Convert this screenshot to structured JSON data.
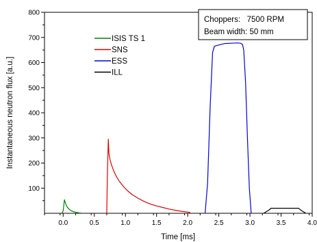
{
  "chart_data": {
    "type": "line",
    "xlabel": "Time [ms]",
    "ylabel": "Instantaneous neutron flux [a.u.]",
    "xlim": [
      -0.3,
      4.0
    ],
    "ylim": [
      0,
      800
    ],
    "x_ticks": [
      0.0,
      0.5,
      1.0,
      1.5,
      2.0,
      2.5,
      3.0,
      3.5,
      4.0
    ],
    "x_tick_labels": [
      "0.0",
      "0.5",
      "1.0",
      "1.5",
      "2.0",
      "2.5",
      "3.0",
      "3.5",
      "4.0"
    ],
    "y_ticks": [
      100,
      200,
      300,
      400,
      500,
      600,
      700,
      800
    ],
    "y_tick_labels": [
      "100",
      "200",
      "300",
      "400",
      "500",
      "600",
      "700",
      "800"
    ],
    "grid": false,
    "legend_position": "upper-left-center",
    "annotation_lines": [
      "Choppers:   7500 RPM",
      "Beam width: 50 mm"
    ],
    "series": [
      {
        "name": "ISIS  TS 1",
        "color": "#008000",
        "points": [
          [
            -0.02,
            0
          ],
          [
            0.0,
            10
          ],
          [
            0.02,
            54
          ],
          [
            0.04,
            38
          ],
          [
            0.06,
            27
          ],
          [
            0.08,
            20
          ],
          [
            0.1,
            15
          ],
          [
            0.13,
            10
          ],
          [
            0.16,
            7
          ],
          [
            0.2,
            4
          ],
          [
            0.25,
            2
          ],
          [
            0.3,
            0
          ]
        ]
      },
      {
        "name": "SNS",
        "color": "#e00000",
        "points": [
          [
            0.7,
            0
          ],
          [
            0.71,
            150
          ],
          [
            0.725,
            295
          ],
          [
            0.735,
            240
          ],
          [
            0.75,
            215
          ],
          [
            0.78,
            190
          ],
          [
            0.81,
            170
          ],
          [
            0.85,
            148
          ],
          [
            0.9,
            128
          ],
          [
            0.95,
            112
          ],
          [
            1.0,
            98
          ],
          [
            1.05,
            86
          ],
          [
            1.1,
            76
          ],
          [
            1.2,
            60
          ],
          [
            1.3,
            47
          ],
          [
            1.4,
            37
          ],
          [
            1.5,
            29
          ],
          [
            1.6,
            23
          ],
          [
            1.7,
            17
          ],
          [
            1.8,
            12
          ],
          [
            1.9,
            8
          ],
          [
            2.0,
            5
          ],
          [
            2.04,
            3
          ]
        ]
      },
      {
        "name": "ESS",
        "color": "#0000e0",
        "points": [
          [
            2.28,
            0
          ],
          [
            2.32,
            120
          ],
          [
            2.36,
            420
          ],
          [
            2.4,
            640
          ],
          [
            2.43,
            665
          ],
          [
            2.5,
            670
          ],
          [
            2.6,
            676
          ],
          [
            2.7,
            677
          ],
          [
            2.8,
            678
          ],
          [
            2.85,
            677
          ],
          [
            2.88,
            672
          ],
          [
            2.9,
            650
          ],
          [
            2.93,
            520
          ],
          [
            2.96,
            300
          ],
          [
            2.99,
            100
          ],
          [
            3.02,
            0
          ]
        ]
      },
      {
        "name": "ILL",
        "color": "#000000",
        "points": [
          [
            3.22,
            0
          ],
          [
            3.3,
            12
          ],
          [
            3.34,
            20
          ],
          [
            3.78,
            20
          ],
          [
            3.82,
            12
          ],
          [
            3.9,
            0
          ]
        ]
      }
    ]
  }
}
